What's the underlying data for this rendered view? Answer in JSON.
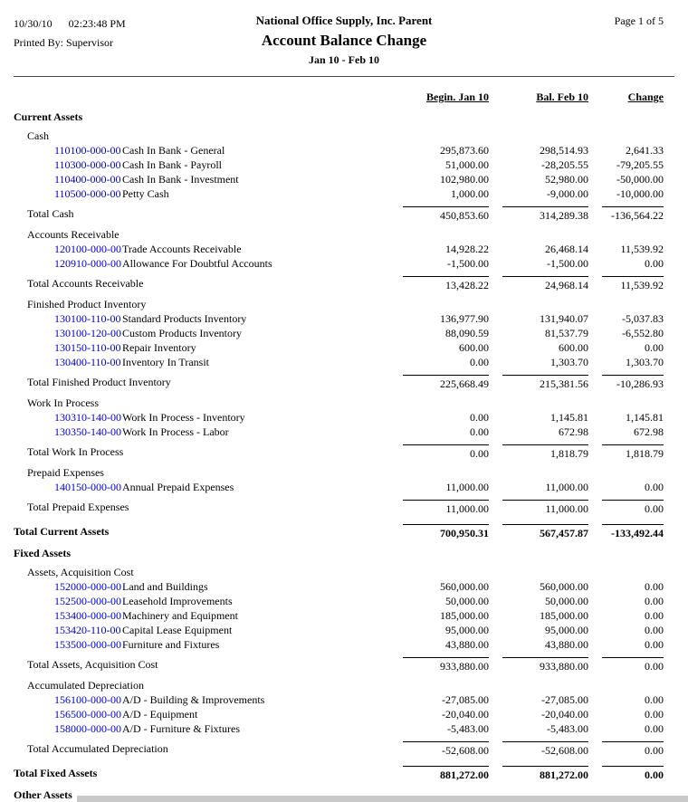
{
  "header": {
    "date": "10/30/10",
    "time": "02:23:48 PM",
    "printed_by": "Printed By: Supervisor",
    "company": "National Office Supply, Inc. Parent",
    "title": "Account Balance Change",
    "period": "Jan 10 - Feb 10",
    "page": "Page 1 of 5"
  },
  "colors": {
    "account_link": "#0000cc"
  },
  "table": {
    "columns": [
      "Begin. Jan 10",
      "Bal. Feb 10",
      "Change"
    ],
    "rows": [
      {
        "type": "section",
        "label": "Current Assets"
      },
      {
        "type": "group",
        "label": "Cash"
      },
      {
        "type": "account",
        "number": "110100-000-00",
        "desc": "Cash In Bank - General",
        "values": [
          "295,873.60",
          "298,514.93",
          "2,641.33"
        ]
      },
      {
        "type": "account",
        "number": "110300-000-00",
        "desc": "Cash In Bank - Payroll",
        "values": [
          "51,000.00",
          "-28,205.55",
          "-79,205.55"
        ]
      },
      {
        "type": "account",
        "number": "110400-000-00",
        "desc": "Cash In Bank - Investment",
        "values": [
          "102,980.00",
          "52,980.00",
          "-50,000.00"
        ]
      },
      {
        "type": "account",
        "number": "110500-000-00",
        "desc": "Petty Cash",
        "values": [
          "1,000.00",
          "-9,000.00",
          "-10,000.00"
        ]
      },
      {
        "type": "subtotal",
        "label": "Total Cash",
        "values": [
          "450,853.60",
          "314,289.38",
          "-136,564.22"
        ]
      },
      {
        "type": "group",
        "label": "Accounts Receivable"
      },
      {
        "type": "account",
        "number": "120100-000-00",
        "desc": "Trade Accounts Receivable",
        "values": [
          "14,928.22",
          "26,468.14",
          "11,539.92"
        ]
      },
      {
        "type": "account",
        "number": "120910-000-00",
        "desc": "Allowance For Doubtful Accounts",
        "values": [
          "-1,500.00",
          "-1,500.00",
          "0.00"
        ]
      },
      {
        "type": "subtotal",
        "label": "Total Accounts Receivable",
        "values": [
          "13,428.22",
          "24,968.14",
          "11,539.92"
        ]
      },
      {
        "type": "group",
        "label": "Finished Product Inventory"
      },
      {
        "type": "account",
        "number": "130100-110-00",
        "desc": "Standard Products Inventory",
        "values": [
          "136,977.90",
          "131,940.07",
          "-5,037.83"
        ]
      },
      {
        "type": "account",
        "number": "130100-120-00",
        "desc": "Custom Products Inventory",
        "values": [
          "88,090.59",
          "81,537.79",
          "-6,552.80"
        ]
      },
      {
        "type": "account",
        "number": "130150-110-00",
        "desc": "Repair Inventory",
        "values": [
          "600.00",
          "600.00",
          "0.00"
        ]
      },
      {
        "type": "account",
        "number": "130400-110-00",
        "desc": "Inventory In Transit",
        "values": [
          "0.00",
          "1,303.70",
          "1,303.70"
        ]
      },
      {
        "type": "subtotal",
        "label": "Total Finished Product Inventory",
        "values": [
          "225,668.49",
          "215,381.56",
          "-10,286.93"
        ]
      },
      {
        "type": "group",
        "label": "Work In Process"
      },
      {
        "type": "account",
        "number": "130310-140-00",
        "desc": "Work In Process - Inventory",
        "values": [
          "0.00",
          "1,145.81",
          "1,145.81"
        ]
      },
      {
        "type": "account",
        "number": "130350-140-00",
        "desc": "Work In Process - Labor",
        "values": [
          "0.00",
          "672.98",
          "672.98"
        ]
      },
      {
        "type": "subtotal",
        "label": "Total Work In Process",
        "values": [
          "0.00",
          "1,818.79",
          "1,818.79"
        ]
      },
      {
        "type": "group",
        "label": "Prepaid Expenses"
      },
      {
        "type": "account",
        "number": "140150-000-00",
        "desc": "Annual Prepaid Expenses",
        "values": [
          "11,000.00",
          "11,000.00",
          "0.00"
        ]
      },
      {
        "type": "subtotal",
        "label": "Total Prepaid Expenses",
        "values": [
          "11,000.00",
          "11,000.00",
          "0.00"
        ]
      },
      {
        "type": "total",
        "label": "Total Current Assets",
        "values": [
          "700,950.31",
          "567,457.87",
          "-133,492.44"
        ]
      },
      {
        "type": "section",
        "label": "Fixed Assets"
      },
      {
        "type": "group",
        "label": "Assets, Acquisition Cost"
      },
      {
        "type": "account",
        "number": "152000-000-00",
        "desc": "Land and Buildings",
        "values": [
          "560,000.00",
          "560,000.00",
          "0.00"
        ]
      },
      {
        "type": "account",
        "number": "152500-000-00",
        "desc": "Leasehold Improvements",
        "values": [
          "50,000.00",
          "50,000.00",
          "0.00"
        ]
      },
      {
        "type": "account",
        "number": "153400-000-00",
        "desc": "Machinery and Equipment",
        "values": [
          "185,000.00",
          "185,000.00",
          "0.00"
        ]
      },
      {
        "type": "account",
        "number": "153420-110-00",
        "desc": "Capital Lease Equipment",
        "values": [
          "95,000.00",
          "95,000.00",
          "0.00"
        ]
      },
      {
        "type": "account",
        "number": "153500-000-00",
        "desc": "Furniture and Fixtures",
        "values": [
          "43,880.00",
          "43,880.00",
          "0.00"
        ]
      },
      {
        "type": "subtotal",
        "label": "Total Assets, Acquisition Cost",
        "values": [
          "933,880.00",
          "933,880.00",
          "0.00"
        ]
      },
      {
        "type": "group",
        "label": "Accumulated Depreciation"
      },
      {
        "type": "account",
        "number": "156100-000-00",
        "desc": "A/D - Building & Improvements",
        "values": [
          "-27,085.00",
          "-27,085.00",
          "0.00"
        ]
      },
      {
        "type": "account",
        "number": "156500-000-00",
        "desc": "A/D - Equipment",
        "values": [
          "-20,040.00",
          "-20,040.00",
          "0.00"
        ]
      },
      {
        "type": "account",
        "number": "158000-000-00",
        "desc": "A/D - Furniture & Fixtures",
        "values": [
          "-5,483.00",
          "-5,483.00",
          "0.00"
        ]
      },
      {
        "type": "subtotal",
        "label": "Total Accumulated Depreciation",
        "values": [
          "-52,608.00",
          "-52,608.00",
          "0.00"
        ]
      },
      {
        "type": "total",
        "label": "Total Fixed Assets",
        "values": [
          "881,272.00",
          "881,272.00",
          "0.00"
        ]
      },
      {
        "type": "section",
        "label": "Other Assets"
      }
    ]
  }
}
